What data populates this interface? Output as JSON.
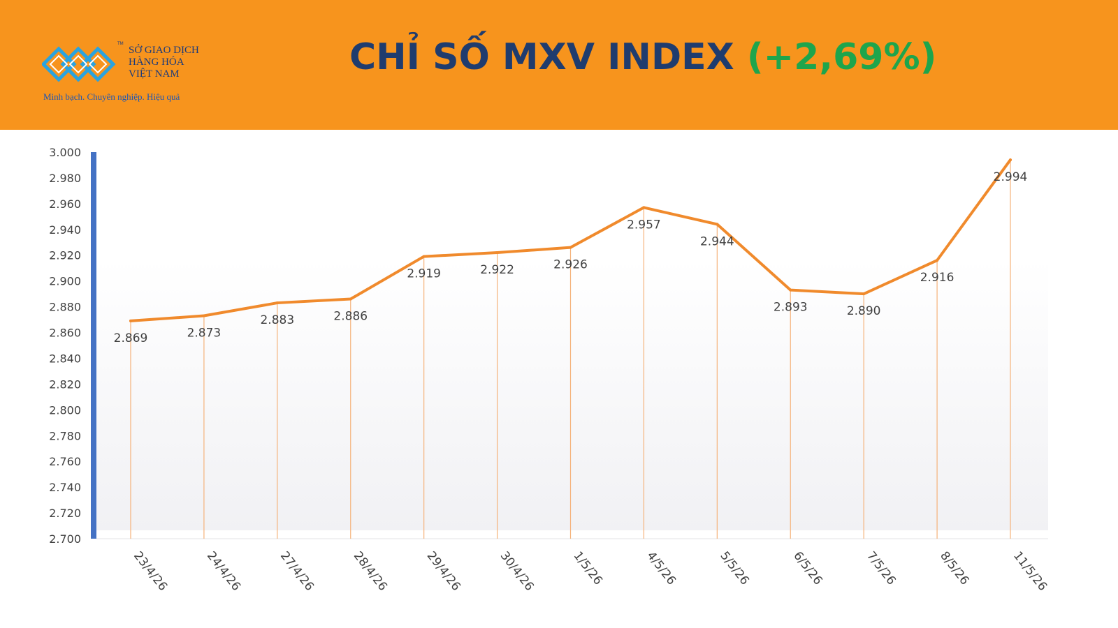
{
  "header": {
    "title": "CHỈ SỐ MXV INDEX",
    "change": "(+2,69%)",
    "colors": {
      "background": "#f7941d",
      "title": "#1f3c6e",
      "change": "#1ea54c"
    }
  },
  "logo": {
    "lines": [
      "SỞ GIAO DỊCH",
      "HÀNG HÓA",
      "VIỆT NAM"
    ],
    "trademark": "TM",
    "tagline": "Minh bạch. Chuyên nghiệp. Hiệu quả"
  },
  "chart_data": {
    "type": "line",
    "title": "",
    "xlabel": "",
    "ylabel": "",
    "categories": [
      "23/4/26",
      "24/4/26",
      "27/4/26",
      "28/4/26",
      "29/4/26",
      "30/4/26",
      "1/5/26",
      "4/5/26",
      "5/5/26",
      "6/5/26",
      "7/5/26",
      "8/5/26",
      "11/5/26"
    ],
    "series": [
      {
        "values": [
          2869,
          2873,
          2883,
          2886,
          2919,
          2922,
          2926,
          2957,
          2944,
          2893,
          2890,
          2916,
          2994
        ],
        "data_labels": [
          "2.869",
          "2.873",
          "2.883",
          "2.886",
          "2.919",
          "2.922",
          "2.926",
          "2.957",
          "2.944",
          "2.893",
          "2.890",
          "2.916",
          "2.994"
        ]
      }
    ],
    "ylim": [
      2700,
      3000
    ],
    "y_ticks": [
      2700,
      2720,
      2740,
      2760,
      2780,
      2800,
      2820,
      2840,
      2860,
      2880,
      2900,
      2920,
      2940,
      2960,
      2980,
      3000
    ],
    "y_tick_labels": [
      "2.700",
      "2.720",
      "2.740",
      "2.760",
      "2.780",
      "2.800",
      "2.820",
      "2.840",
      "2.860",
      "2.880",
      "2.900",
      "2.920",
      "2.940",
      "2.960",
      "2.980",
      "3.000"
    ],
    "grid": false,
    "drop_lines": true,
    "legend": "none",
    "colors": {
      "line": "#f08a2c",
      "drop_line": "#f5b27a",
      "y_axis": "#4472c4",
      "labels": "#404040"
    }
  }
}
